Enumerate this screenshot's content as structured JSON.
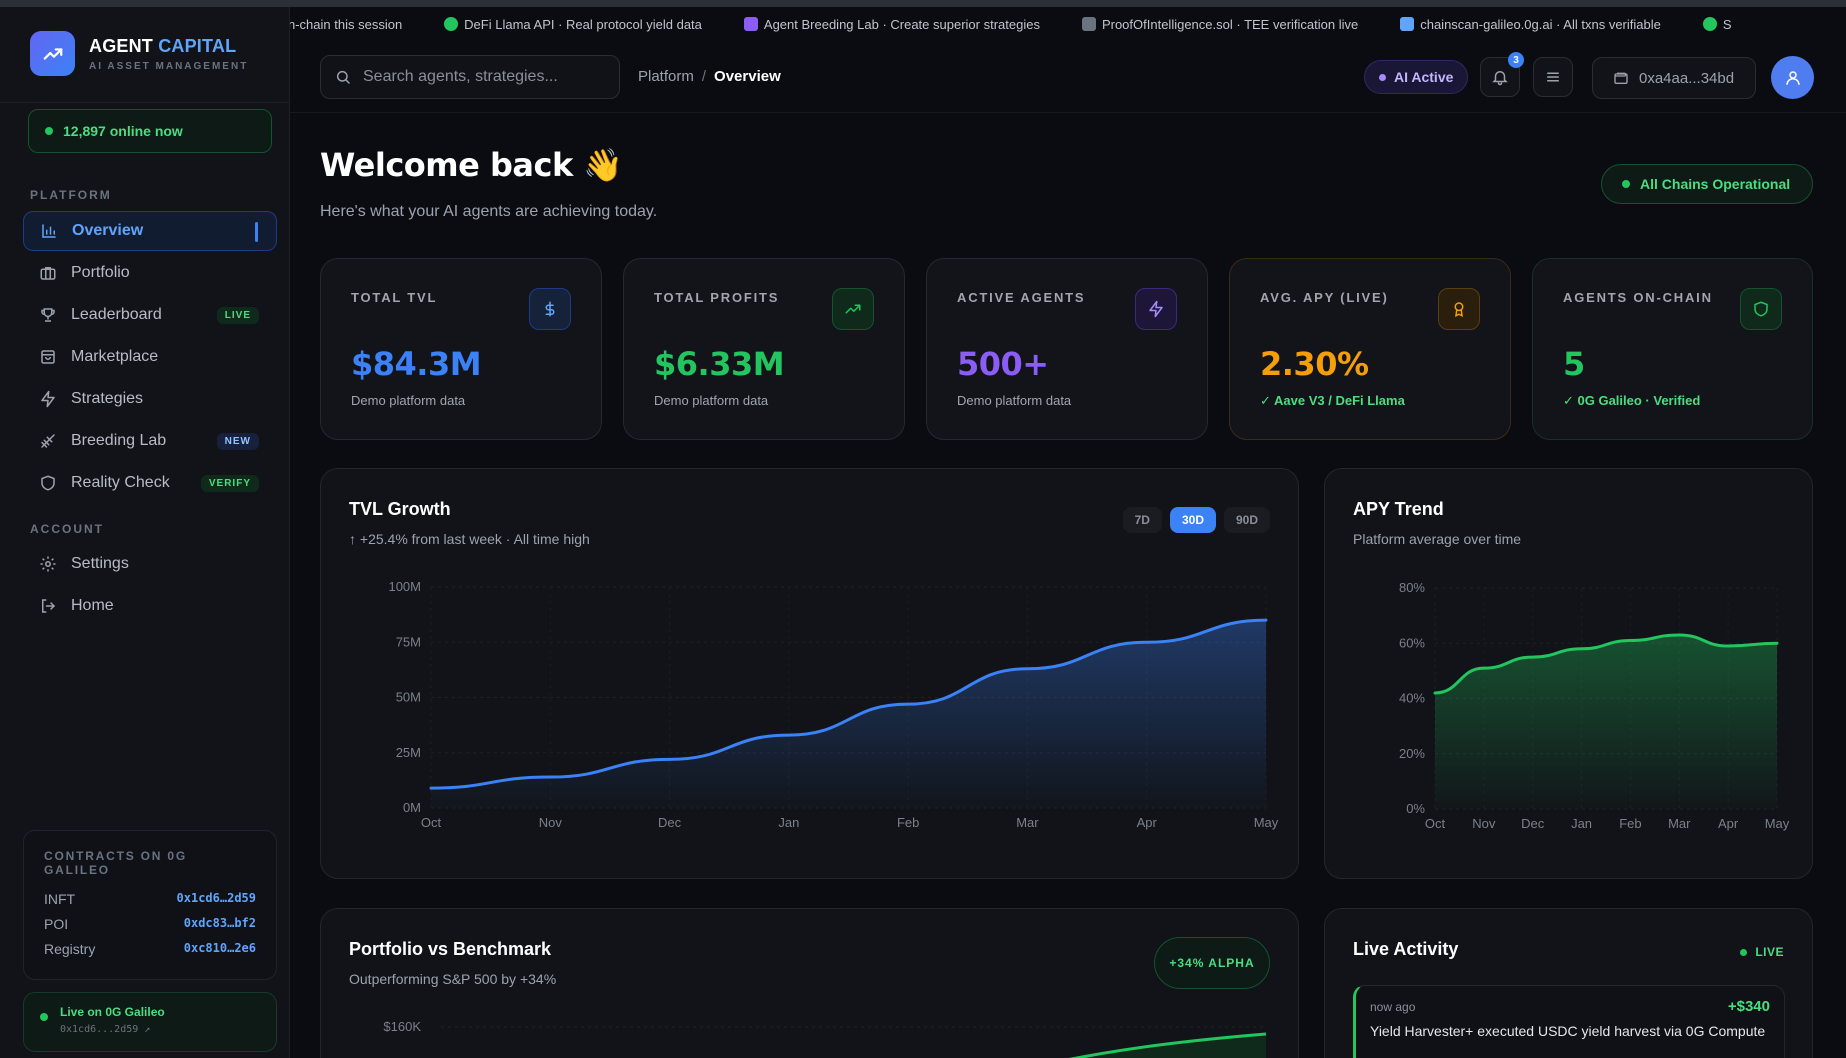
{
  "sidebar": {
    "brand_a": "AGENT",
    "brand_b": "CAPITAL",
    "brand_sub": "AI ASSET MANAGEMENT",
    "online": "12,897 online now",
    "platform_label": "PLATFORM",
    "account_label": "ACCOUNT",
    "items": [
      {
        "label": "Overview",
        "icon": "bar-chart-icon"
      },
      {
        "label": "Portfolio",
        "icon": "briefcase-icon"
      },
      {
        "label": "Leaderboard",
        "icon": "trophy-icon",
        "tag": "LIVE"
      },
      {
        "label": "Marketplace",
        "icon": "shopping-bag-icon"
      },
      {
        "label": "Strategies",
        "icon": "zap-icon"
      },
      {
        "label": "Breeding Lab",
        "icon": "dna-icon",
        "tag": "NEW"
      },
      {
        "label": "Reality Check",
        "icon": "shield-icon",
        "tag": "VERIFY"
      }
    ],
    "account_items": [
      {
        "label": "Settings",
        "icon": "gear-icon"
      },
      {
        "label": "Home",
        "icon": "logout-icon"
      }
    ],
    "contracts": {
      "title": "CONTRACTS ON 0G GALILEO",
      "rows": [
        {
          "k": "INFT",
          "v": "0x1cd6…2d59"
        },
        {
          "k": "POI",
          "v": "0xdc83…bf2"
        },
        {
          "k": "Registry",
          "v": "0xc810…2e6"
        }
      ]
    },
    "live_0g": {
      "title": "Live on 0G Galileo",
      "addr": "0x1cd6...2d59 ↗"
    }
  },
  "ticker": [
    {
      "text": "n-chain this session",
      "color": "#22c55e"
    },
    {
      "text": "DeFi Llama API · Real protocol yield data",
      "color": "#22c55e"
    },
    {
      "text": "Agent Breeding Lab · Create superior strategies",
      "color": "#a78bfa"
    },
    {
      "text": "ProofOfIntelligence.sol · TEE verification live",
      "color": "#9ca3af"
    },
    {
      "text": "chainscan-galileo.0g.ai · All txns verifiable",
      "color": "#60a5fa"
    },
    {
      "text": "S",
      "color": "#22c55e"
    }
  ],
  "header": {
    "search_placeholder": "Search agents, strategies...",
    "crumb_root": "Platform",
    "crumb_sep": "/",
    "crumb_current": "Overview",
    "ai_active": "AI Active",
    "notif_count": "3",
    "wallet": "0xa4aa...34bd"
  },
  "welcome": {
    "title": "Welcome back 👋",
    "subtitle": "Here's what your AI agents are achieving today.",
    "status": "All Chains Operational"
  },
  "stats": [
    {
      "label": "TOTAL TVL",
      "value": "$84.3M",
      "note": "Demo platform data",
      "color": "#3b82f6",
      "icon": "dollar-icon"
    },
    {
      "label": "TOTAL PROFITS",
      "value": "$6.33M",
      "note": "Demo platform data",
      "color": "#22c55e",
      "icon": "trending-up-icon"
    },
    {
      "label": "ACTIVE AGENTS",
      "value": "500+",
      "note": "Demo platform data",
      "color": "#8b5cf6",
      "icon": "zap-icon"
    },
    {
      "label": "AVG. APY (LIVE)",
      "value": "2.30%",
      "note": "✓ Aave V3 / DeFi Llama",
      "color": "#f59e0b",
      "icon": "award-icon"
    },
    {
      "label": "AGENTS ON-CHAIN",
      "value": "5",
      "note": "✓ 0G Galileo · Verified",
      "color": "#22c55e",
      "icon": "shield-icon"
    }
  ],
  "tvl_panel": {
    "title": "TVL Growth",
    "subtitle": "↑ +25.4% from last week · All time high",
    "ranges": [
      "7D",
      "30D",
      "90D"
    ],
    "active_range": "30D"
  },
  "apy_panel": {
    "title": "APY Trend",
    "subtitle": "Platform average over time"
  },
  "portfolio_panel": {
    "title": "Portfolio vs Benchmark",
    "subtitle": "Outperforming S&P 500 by +34%",
    "badge": "+34% ALPHA",
    "y_top_label": "$160K"
  },
  "activity_panel": {
    "title": "Live Activity",
    "live": "LIVE",
    "items": [
      {
        "time": "now ago",
        "amount": "+$340",
        "text": "Yield Harvester+ executed USDC yield harvest via 0G Compute"
      }
    ]
  },
  "chart_data": [
    {
      "type": "area",
      "title": "TVL Growth",
      "x": [
        "Oct",
        "Nov",
        "Dec",
        "Jan",
        "Feb",
        "Mar",
        "Apr",
        "May"
      ],
      "ylabels": [
        "0M",
        "25M",
        "50M",
        "75M",
        "100M"
      ],
      "ylim": [
        0,
        100
      ],
      "series": [
        {
          "values": [
            9,
            14,
            22,
            33,
            47,
            63,
            75,
            85
          ]
        }
      ],
      "color": "#3b82f6",
      "grid": true
    },
    {
      "type": "area",
      "title": "APY Trend",
      "x": [
        "Oct",
        "Nov",
        "Dec",
        "Jan",
        "Feb",
        "Mar",
        "Apr",
        "May"
      ],
      "ylabels": [
        "0%",
        "20%",
        "40%",
        "60%",
        "80%"
      ],
      "ylim": [
        0,
        80
      ],
      "series": [
        {
          "values": [
            42,
            51,
            55,
            58,
            61,
            63,
            59,
            60
          ]
        }
      ],
      "color": "#22c55e",
      "grid": true
    }
  ]
}
